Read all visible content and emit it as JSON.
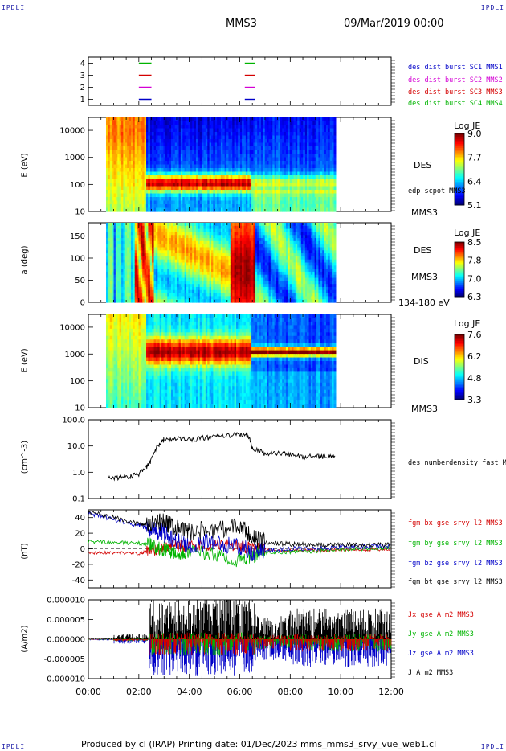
{
  "header": {
    "corner_left_top": "IPDLI",
    "corner_right_top": "IPDLI",
    "corner_left_bottom": "IPDLI",
    "corner_right_bottom": "IPDLI",
    "spacecraft": "MMS3",
    "datetime": "09/Mar/2019 00:00"
  },
  "footer": {
    "text": "Produced by cl (IRAP)   Printing date: 01/Dec/2023   mms_mms3_srvy_vue_web1.cl"
  },
  "colors": {
    "mms1": "#0000c8",
    "mms2": "#d400d4",
    "mms3": "#d40000",
    "mms4": "#00b400",
    "black": "#000000"
  },
  "chart_data": [
    {
      "type": "line",
      "panel": "burst",
      "ylim": [
        0.5,
        4.5
      ],
      "y_ticks": [
        "4",
        "3",
        "2",
        "1"
      ],
      "legend": [
        {
          "name": "des dist burst SC1 MMS1",
          "color": "#0000c8"
        },
        {
          "name": "des dist burst SC2 MMS2",
          "color": "#d400d4"
        },
        {
          "name": "des dist burst SC3 MMS3",
          "color": "#d40000"
        },
        {
          "name": "des dist burst SC4 MMS4",
          "color": "#00b400"
        }
      ],
      "intervals": [
        {
          "sc": 4,
          "color": "#00b400",
          "segments": [
            [
              2.0,
              2.5
            ],
            [
              6.2,
              6.6
            ]
          ]
        },
        {
          "sc": 3,
          "color": "#d40000",
          "segments": [
            [
              2.0,
              2.5
            ],
            [
              6.2,
              6.6
            ]
          ]
        },
        {
          "sc": 2,
          "color": "#d400d4",
          "segments": [
            [
              2.0,
              2.5
            ],
            [
              6.2,
              6.6
            ]
          ]
        },
        {
          "sc": 1,
          "color": "#0000c8",
          "segments": [
            [
              2.0,
              2.5
            ],
            [
              6.2,
              6.6
            ]
          ]
        }
      ]
    },
    {
      "type": "heatmap",
      "panel": "des_energy",
      "ylabel": "E (eV)",
      "y_ticks": [
        "10000",
        "1000",
        "100",
        "10"
      ],
      "ylim_log": [
        10,
        30000
      ],
      "side_labels": [
        "DES",
        "edp scpot MMS3",
        "MMS3"
      ],
      "colorbar": {
        "title": "Log JE",
        "ticks": [
          "9.0",
          "7.7",
          "6.4",
          "5.1"
        ],
        "range": [
          5.1,
          9.0
        ]
      },
      "data_x_range": [
        0.7,
        9.8
      ]
    },
    {
      "type": "heatmap",
      "panel": "des_pitch",
      "ylabel": "a (deg)",
      "y_ticks": [
        "150",
        "100",
        "50",
        "0"
      ],
      "ylim": [
        0,
        180
      ],
      "side_labels": [
        "DES",
        "MMS3",
        "134-180 eV"
      ],
      "colorbar": {
        "title": "Log JE",
        "ticks": [
          "8.5",
          "7.8",
          "7.0",
          "6.3"
        ],
        "range": [
          6.3,
          8.5
        ]
      },
      "data_x_range": [
        0.7,
        9.8
      ]
    },
    {
      "type": "heatmap",
      "panel": "dis_energy",
      "ylabel": "E (eV)",
      "y_ticks": [
        "10000",
        "1000",
        "100",
        "10"
      ],
      "ylim_log": [
        10,
        30000
      ],
      "side_labels": [
        "DIS",
        "MMS3"
      ],
      "colorbar": {
        "title": "Log JE",
        "ticks": [
          "7.6",
          "6.2",
          "4.8",
          "3.3"
        ],
        "range": [
          3.3,
          7.6
        ]
      },
      "data_x_range": [
        0.7,
        9.8
      ]
    },
    {
      "type": "line",
      "panel": "density",
      "ylabel": "(cm^-3)",
      "y_ticks": [
        "100.0",
        "10.0",
        "1.0",
        "0.1"
      ],
      "ylim_log": [
        0.1,
        100
      ],
      "series": [
        {
          "name": "des numberdensity fast M",
          "color": "#000000",
          "x": [
            0.8,
            1.2,
            1.6,
            2.0,
            2.3,
            2.5,
            2.8,
            3.0,
            3.5,
            4.0,
            4.5,
            5.0,
            5.5,
            6.0,
            6.3,
            6.5,
            7.0,
            7.5,
            8.0,
            8.5,
            9.0,
            9.5,
            9.8
          ],
          "y": [
            0.6,
            0.65,
            0.7,
            0.9,
            1.5,
            3.0,
            12.0,
            18.0,
            20.0,
            18.0,
            20.0,
            22.0,
            25.0,
            28.0,
            25.0,
            8.0,
            5.0,
            5.5,
            4.5,
            4.0,
            4.2,
            4.0,
            4.1
          ]
        }
      ]
    },
    {
      "type": "line",
      "panel": "magnetic_field",
      "ylabel": "(nT)",
      "y_ticks": [
        "40",
        "20",
        "0",
        "-20",
        "-40"
      ],
      "ylim": [
        -50,
        50
      ],
      "series": [
        {
          "name": "fgm bx gse srvy l2 MMS3",
          "color": "#d40000",
          "x": [
            0,
            1,
            2,
            2.5,
            3,
            3.5,
            4,
            5,
            6,
            6.5,
            7,
            8,
            9,
            10,
            11,
            12
          ],
          "y": [
            -5,
            -5,
            -6,
            -3,
            2,
            5,
            3,
            5,
            4,
            0,
            -1,
            -2,
            -2,
            -1,
            -1,
            -1
          ]
        },
        {
          "name": "fgm by gse srvy l2 MMS3",
          "color": "#00b400",
          "x": [
            0,
            1,
            2,
            2.5,
            3,
            3.5,
            4,
            5,
            6,
            6.5,
            7,
            8,
            9,
            10,
            11,
            12
          ],
          "y": [
            9,
            8,
            7,
            4,
            0,
            -5,
            -3,
            -8,
            -15,
            -8,
            -5,
            -4,
            -3,
            -1,
            0,
            1
          ]
        },
        {
          "name": "fgm bz gse srvy l2 MMS3",
          "color": "#0000c8",
          "x": [
            0,
            1,
            2,
            2.5,
            3,
            3.5,
            4,
            5,
            6,
            6.5,
            7,
            8,
            9,
            10,
            11,
            12
          ],
          "y": [
            46,
            38,
            30,
            25,
            20,
            10,
            5,
            8,
            2,
            -5,
            -2,
            0,
            0,
            2,
            3,
            3
          ]
        },
        {
          "name": "fgm bt gse srvy l2 MMS3",
          "color": "#000000",
          "x": [
            0,
            1,
            2,
            2.5,
            3,
            3.5,
            4,
            5,
            6,
            6.5,
            7,
            8,
            9,
            10,
            11,
            12
          ],
          "y": [
            48,
            40,
            32,
            30,
            35,
            25,
            22,
            25,
            28,
            15,
            8,
            6,
            5,
            5,
            5,
            5
          ]
        }
      ]
    },
    {
      "type": "line",
      "panel": "current_density",
      "ylabel": "(A/m2)",
      "y_ticks": [
        "0.000010",
        "0.000005",
        "0.000000",
        "-0.000005",
        "-0.000010"
      ],
      "ylim": [
        -1e-05,
        1e-05
      ],
      "series": [
        {
          "name": "Jx gse A m2 MMS3",
          "color": "#d40000"
        },
        {
          "name": "Jy gse A m2 MMS3",
          "color": "#00b400"
        },
        {
          "name": "Jz gse A m2 MMS3",
          "color": "#0000c8"
        },
        {
          "name": "J A m2 MMS3",
          "color": "#000000"
        }
      ]
    }
  ],
  "x_axis": {
    "ticks": [
      "00:00",
      "02:00",
      "04:00",
      "06:00",
      "08:00",
      "10:00",
      "12:00"
    ],
    "xlim_hours": [
      0,
      12
    ]
  }
}
